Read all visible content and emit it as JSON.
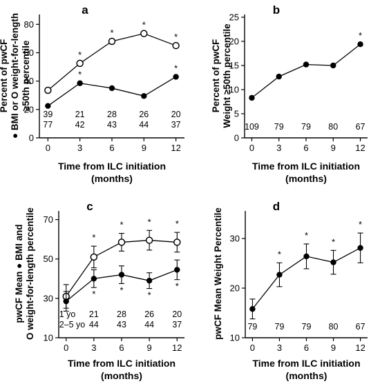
{
  "chart_data": [
    {
      "panel": "a",
      "type": "line",
      "ylabel_lines": [
        "Percent of pwCF",
        "● BMI or O weight-for-length",
        "≥50th percentile"
      ],
      "xlabel_lines": [
        "Time from ILC initiation",
        "(months)"
      ],
      "x": [
        0,
        3,
        6,
        9,
        12
      ],
      "xlim": [
        -0.8,
        12.8
      ],
      "ylim": [
        0,
        85
      ],
      "yticks": [
        0,
        20,
        40,
        60,
        80
      ],
      "series": [
        {
          "marker": "open",
          "values": [
            33.5,
            52.5,
            68,
            73.5,
            65
          ],
          "stars": [
            "",
            "*",
            "*",
            "*",
            "*"
          ]
        },
        {
          "marker": "filled",
          "values": [
            22.5,
            38.5,
            35,
            29.5,
            43
          ],
          "stars": [
            "",
            "*",
            "",
            "",
            "*"
          ]
        }
      ],
      "n_rows": [
        {
          "label": "",
          "values": [
            "39",
            "21",
            "28",
            "26",
            "20"
          ]
        },
        {
          "label": "",
          "values": [
            "77",
            "42",
            "43",
            "44",
            "37"
          ]
        }
      ]
    },
    {
      "panel": "b",
      "type": "line",
      "ylabel_lines": [
        "Percent of pwCF",
        "Weight ≥50th percentile"
      ],
      "xlabel_lines": [
        "Time from ILC initiation",
        "(months)"
      ],
      "x": [
        0,
        3,
        6,
        9,
        12
      ],
      "xlim": [
        -0.8,
        12.8
      ],
      "ylim": [
        0,
        25
      ],
      "yticks": [
        0,
        5,
        10,
        15,
        20,
        25
      ],
      "series": [
        {
          "marker": "filled",
          "values": [
            8.3,
            12.7,
            15.2,
            15,
            19.4
          ],
          "stars": [
            "",
            "",
            "",
            "",
            "*"
          ]
        }
      ],
      "n_rows": [
        {
          "label": "",
          "values": [
            "109",
            "79",
            "79",
            "80",
            "67"
          ]
        }
      ]
    },
    {
      "panel": "c",
      "type": "line",
      "ylabel_lines": [
        "pwCF Mean ● BMI and",
        "O weight-for-length percentile"
      ],
      "xlabel_lines": [
        "Time from ILC initiation",
        "(months)"
      ],
      "x": [
        0,
        3,
        6,
        9,
        12
      ],
      "xlim": [
        -0.8,
        12.8
      ],
      "ylim": [
        10,
        73
      ],
      "yticks": [
        10,
        30,
        50,
        70
      ],
      "series": [
        {
          "marker": "open",
          "values": [
            31,
            51,
            58.5,
            59.5,
            58.5
          ],
          "errors": [
            6,
            5.5,
            4.5,
            5,
            5
          ],
          "stars": [
            "",
            "*",
            "*",
            "*",
            "*"
          ],
          "star_side": "above"
        },
        {
          "marker": "filled",
          "values": [
            28.5,
            40,
            42,
            39,
            44.5
          ],
          "errors": [
            5,
            4.5,
            4.5,
            4,
            5
          ],
          "stars": [
            "",
            "*",
            "*",
            "*",
            "*"
          ],
          "star_side": "below"
        }
      ],
      "n_rows": [
        {
          "label": "1 yo",
          "values": [
            "",
            "21",
            "28",
            "26",
            "20"
          ]
        },
        {
          "label": "2–5 yo",
          "values": [
            "44",
            "43",
            "44",
            "37"
          ],
          "offset": 1
        }
      ]
    },
    {
      "panel": "d",
      "type": "line",
      "ylabel_lines": [
        "pwCF Mean Weight Percentile"
      ],
      "xlabel_lines": [
        "Time from ILC initiation",
        "(months)"
      ],
      "x": [
        0,
        3,
        6,
        9,
        12
      ],
      "xlim": [
        -0.8,
        12.8
      ],
      "ylim": [
        10,
        35
      ],
      "yticks": [
        10,
        20,
        30
      ],
      "series": [
        {
          "marker": "filled",
          "values": [
            15.8,
            22.7,
            26.4,
            25.2,
            28.1
          ],
          "errors": [
            2.0,
            2.4,
            2.5,
            2.4,
            3.0
          ],
          "stars": [
            "",
            "*",
            "*",
            "*",
            "*"
          ],
          "star_side": "above"
        }
      ],
      "n_rows": [
        {
          "label": "",
          "values": [
            "79",
            "79",
            "79",
            "80",
            "67"
          ]
        }
      ]
    }
  ]
}
